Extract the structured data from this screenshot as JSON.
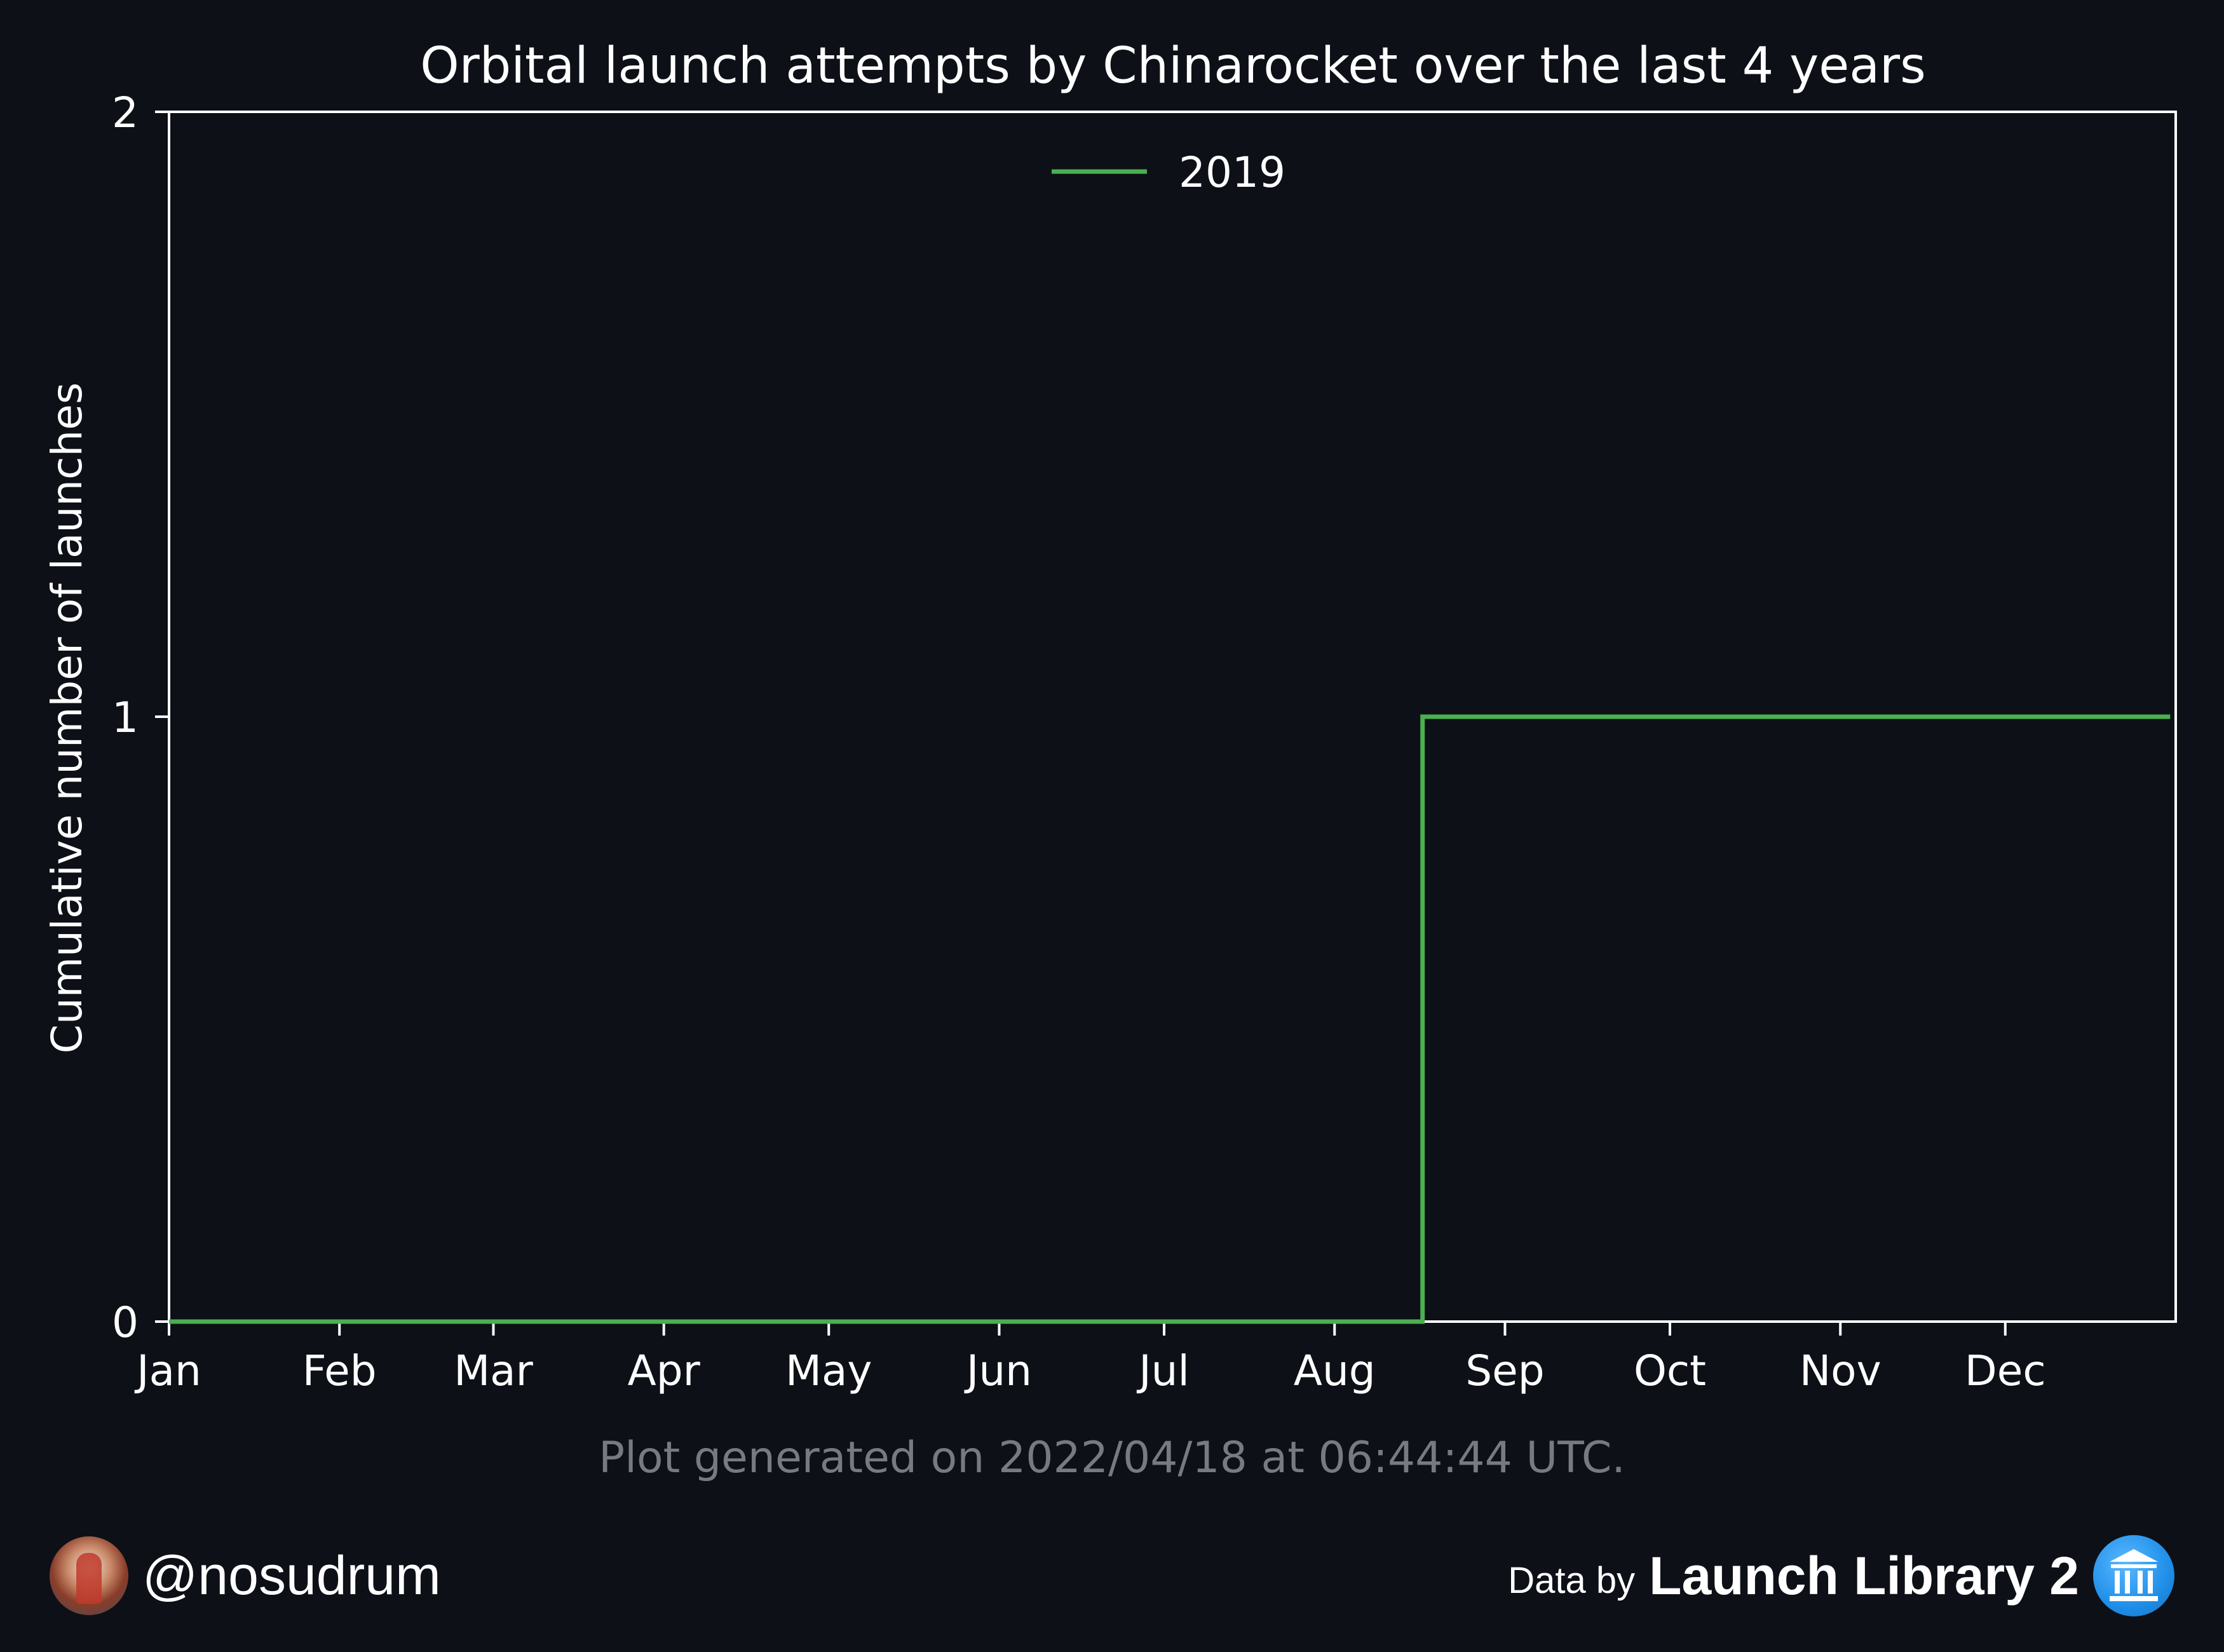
{
  "chart_data": {
    "type": "line",
    "step": true,
    "title": "Orbital launch attempts by Chinarocket over the last 4 years",
    "xlabel": "",
    "ylabel": "Cumulative number of launches",
    "x_tick_labels": [
      "Jan",
      "Feb",
      "Mar",
      "Apr",
      "May",
      "Jun",
      "Jul",
      "Aug",
      "Sep",
      "Oct",
      "Nov",
      "Dec"
    ],
    "x_range": [
      "Jan 1",
      "Dec 31"
    ],
    "ylim": [
      0,
      2
    ],
    "y_ticks": [
      0,
      1,
      2
    ],
    "grid": false,
    "legend_position": "top-center",
    "series": [
      {
        "name": "2019",
        "color": "#4caf50",
        "points": [
          {
            "date": "Jan 1",
            "value": 0
          },
          {
            "date": "Aug 17",
            "value": 0
          },
          {
            "date": "Aug 17",
            "value": 1
          },
          {
            "date": "Dec 31",
            "value": 1
          }
        ]
      }
    ]
  },
  "footer": {
    "generated": "Plot generated on 2022/04/18 at 06:44:44 UTC.",
    "author_handle": "@nosudrum",
    "credit_prefix": "Data by",
    "credit_name": "Launch Library 2"
  },
  "colors": {
    "background": "#0d1017",
    "axis": "#ffffff",
    "footer_text": "#777a80"
  }
}
